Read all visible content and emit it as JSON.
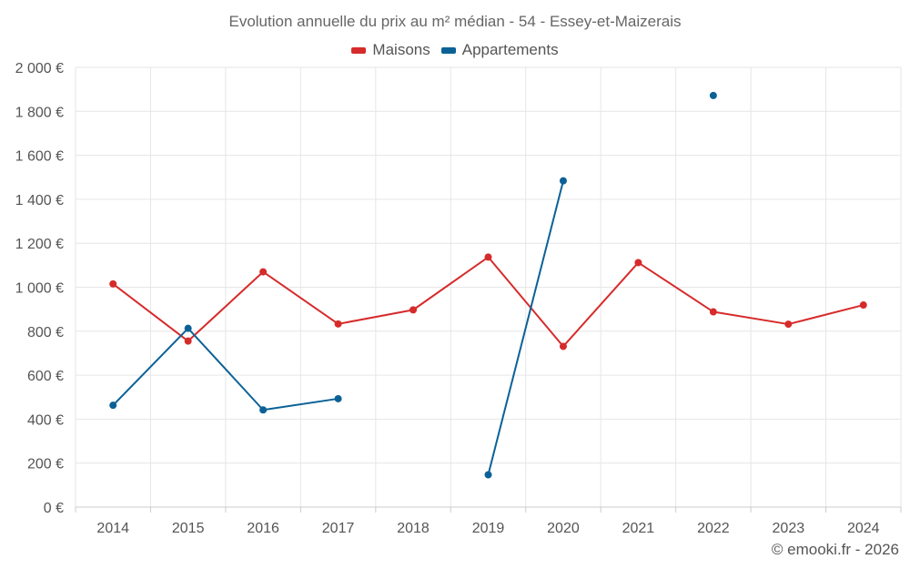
{
  "chart_data": {
    "type": "line",
    "title": "Evolution annuelle du prix au m² médian - 54 - Essey-et-Maizerais",
    "categories": [
      "2014",
      "2015",
      "2016",
      "2017",
      "2018",
      "2019",
      "2020",
      "2021",
      "2022",
      "2023",
      "2024"
    ],
    "ylim": [
      0,
      2000
    ],
    "yticks": [
      0,
      200,
      400,
      600,
      800,
      1000,
      1200,
      1400,
      1600,
      1800,
      2000
    ],
    "ytick_labels": [
      "0 €",
      "200 €",
      "400 €",
      "600 €",
      "800 €",
      "1 000 €",
      "1 200 €",
      "1 400 €",
      "1 600 €",
      "1 800 €",
      "2 000 €"
    ],
    "legend_position": "top-center",
    "grid": true,
    "series": [
      {
        "name": "Maisons",
        "color": "#d62b2b",
        "values": [
          1015,
          755,
          1070,
          833,
          897,
          1137,
          731,
          1112,
          888,
          832,
          919
        ]
      },
      {
        "name": "Appartements",
        "color": "#0b6196",
        "values": [
          463,
          813,
          442,
          493,
          null,
          147,
          1484,
          null,
          1872,
          null,
          null
        ]
      }
    ]
  },
  "credit": "© emooki.fr - 2026"
}
